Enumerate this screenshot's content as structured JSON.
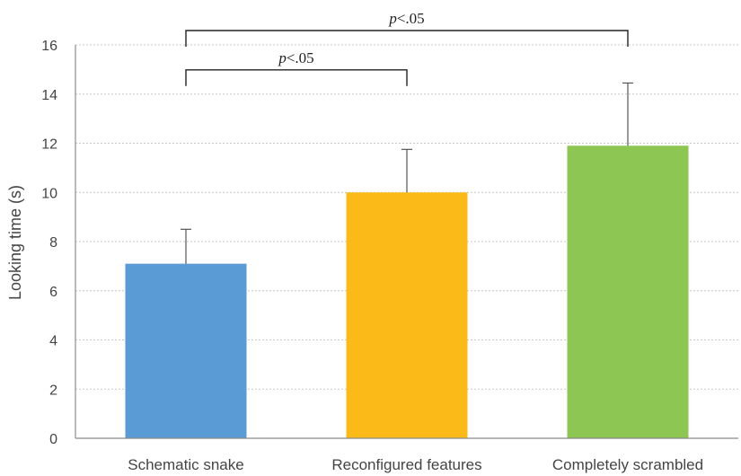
{
  "chart_data": {
    "type": "bar",
    "title": "",
    "xlabel": "",
    "ylabel": "Looking time (s)",
    "ylim": [
      0,
      16
    ],
    "yticks": [
      0,
      2,
      4,
      6,
      8,
      10,
      12,
      14,
      16
    ],
    "grid": true,
    "categories": [
      "Schematic snake",
      "Reconfigured features",
      "Completely scrambled"
    ],
    "values": [
      7.1,
      10.0,
      11.9
    ],
    "error_upper": [
      8.5,
      11.75,
      14.45
    ],
    "colors": [
      "#5b9bd5",
      "#fcba18",
      "#8dc653"
    ],
    "significance": [
      {
        "from": 0,
        "to": 2,
        "p_symbol": "p",
        "p_rest": "<.05",
        "level": 16.0
      },
      {
        "from": 0,
        "to": 1,
        "p_symbol": "p",
        "p_rest": "<.05",
        "level": 14.4
      }
    ]
  }
}
